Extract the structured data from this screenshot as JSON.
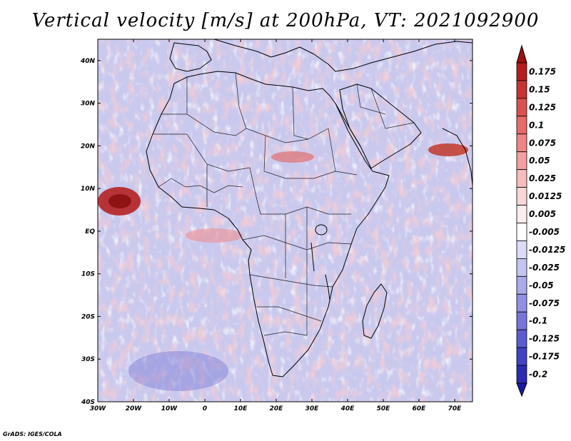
{
  "header": {
    "title": "Vertical velocity [m/s] at 200hPa, VT: 2021092900"
  },
  "map": {
    "lon_range": [
      -30,
      75
    ],
    "lat_range": [
      -40,
      45
    ],
    "lon_ticks": [
      {
        "value": -30,
        "label": "30W"
      },
      {
        "value": -20,
        "label": "20W"
      },
      {
        "value": -10,
        "label": "10W"
      },
      {
        "value": 0,
        "label": "0"
      },
      {
        "value": 10,
        "label": "10E"
      },
      {
        "value": 20,
        "label": "20E"
      },
      {
        "value": 30,
        "label": "30E"
      },
      {
        "value": 40,
        "label": "40E"
      },
      {
        "value": 50,
        "label": "50E"
      },
      {
        "value": 60,
        "label": "60E"
      },
      {
        "value": 70,
        "label": "70E"
      }
    ],
    "lat_ticks": [
      {
        "value": 40,
        "label": "40N"
      },
      {
        "value": 30,
        "label": "30N"
      },
      {
        "value": 20,
        "label": "20N"
      },
      {
        "value": 10,
        "label": "10N"
      },
      {
        "value": 0,
        "label": "EQ"
      },
      {
        "value": -10,
        "label": "10S"
      },
      {
        "value": -20,
        "label": "20S"
      },
      {
        "value": -30,
        "label": "30S"
      },
      {
        "value": -40,
        "label": "40S"
      }
    ],
    "background_color": "#c9c9ee",
    "coast_color": "#000000"
  },
  "colorbar": {
    "levels": [
      {
        "label": "0.175",
        "color": "#b71c1c"
      },
      {
        "label": "0.15",
        "color": "#cb3232"
      },
      {
        "label": "0.125",
        "color": "#dd5050"
      },
      {
        "label": "0.1",
        "color": "#e86a6a"
      },
      {
        "label": "0.075",
        "color": "#ef8585"
      },
      {
        "label": "0.05",
        "color": "#f4a0a0"
      },
      {
        "label": "0.025",
        "color": "#f8bcbc"
      },
      {
        "label": "0.0125",
        "color": "#fbd6d6"
      },
      {
        "label": "0.005",
        "color": "#fdeeee"
      },
      {
        "label": "-0.005",
        "color": "#ffffff"
      },
      {
        "label": "-0.0125",
        "color": "#dcdcf8"
      },
      {
        "label": "-0.025",
        "color": "#c4c4f2"
      },
      {
        "label": "-0.05",
        "color": "#aaaaec"
      },
      {
        "label": "-0.075",
        "color": "#9090e4"
      },
      {
        "label": "-0.1",
        "color": "#7676da"
      },
      {
        "label": "-0.125",
        "color": "#5c5cd0"
      },
      {
        "label": "-0.175",
        "color": "#4242c4"
      },
      {
        "label": "-0.2",
        "color": "#2a2ab4"
      }
    ],
    "max_arrow_color": "#a01010",
    "min_arrow_color": "#1a1aa0"
  },
  "footer": {
    "credit": "GrADS: IGES/COLA"
  }
}
